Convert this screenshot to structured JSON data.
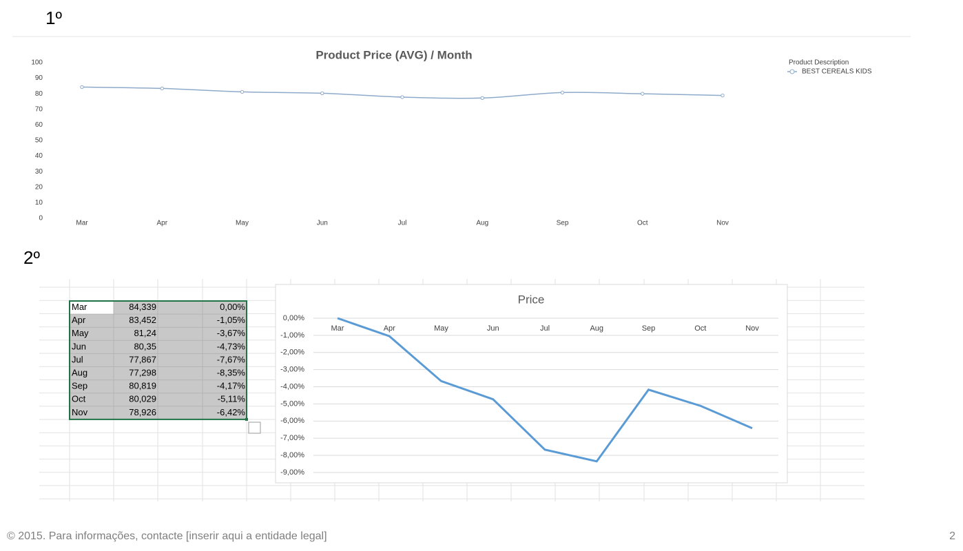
{
  "labels": {
    "section1": "1º",
    "section2": "2º"
  },
  "chart_data": [
    {
      "type": "line",
      "title": "Product Price (AVG) / Month",
      "legend_title": "Product Description",
      "categories": [
        "Mar",
        "Apr",
        "May",
        "Jun",
        "Jul",
        "Aug",
        "Sep",
        "Oct",
        "Nov"
      ],
      "series": [
        {
          "name": "BEST CEREALS KIDS",
          "color": "#8eaacb",
          "values": [
            84.339,
            83.452,
            81.24,
            80.35,
            77.867,
            77.298,
            80.819,
            80.029,
            78.926
          ]
        }
      ],
      "ylim": [
        0,
        100
      ],
      "yticks": [
        0,
        10,
        20,
        30,
        40,
        50,
        60,
        70,
        80,
        90,
        100
      ],
      "grid": false,
      "smooth": true,
      "markers": true,
      "legend": "top-right"
    },
    {
      "type": "line",
      "title": "Price",
      "categories": [
        "Mar",
        "Apr",
        "May",
        "Jun",
        "Jul",
        "Aug",
        "Sep",
        "Oct",
        "Nov"
      ],
      "series": [
        {
          "color": "#5b9bd5",
          "values": [
            0,
            -1.05,
            -3.67,
            -4.73,
            -7.67,
            -8.35,
            -4.17,
            -5.11,
            -6.42
          ]
        }
      ],
      "ylim": [
        -9,
        0
      ],
      "yticks": [
        {
          "value": 0,
          "label": "0,00%"
        },
        {
          "value": -1,
          "label": "-1,00%"
        },
        {
          "value": -2,
          "label": "-2,00%"
        },
        {
          "value": -3,
          "label": "-3,00%"
        },
        {
          "value": -4,
          "label": "-4,00%"
        },
        {
          "value": -5,
          "label": "-5,00%"
        },
        {
          "value": -6,
          "label": "-6,00%"
        },
        {
          "value": -7,
          "label": "-7,00%"
        },
        {
          "value": -8,
          "label": "-8,00%"
        },
        {
          "value": -9,
          "label": "-9,00%"
        }
      ],
      "grid": true,
      "smooth": false,
      "markers": false
    }
  ],
  "table": {
    "rows": [
      [
        "Mar",
        "84,339",
        "0,00%"
      ],
      [
        "Apr",
        "83,452",
        "-1,05%"
      ],
      [
        "May",
        "81,24",
        "-3,67%"
      ],
      [
        "Jun",
        "80,35",
        "-4,73%"
      ],
      [
        "Jul",
        "77,867",
        "-7,67%"
      ],
      [
        "Aug",
        "77,298",
        "-8,35%"
      ],
      [
        "Sep",
        "80,819",
        "-4,17%"
      ],
      [
        "Oct",
        "80,029",
        "-5,11%"
      ],
      [
        "Nov",
        "78,926",
        "-6,42%"
      ]
    ]
  },
  "footer": {
    "text": "© 2015. Para informações, contacte [inserir aqui a entidade legal]",
    "page": "2"
  }
}
